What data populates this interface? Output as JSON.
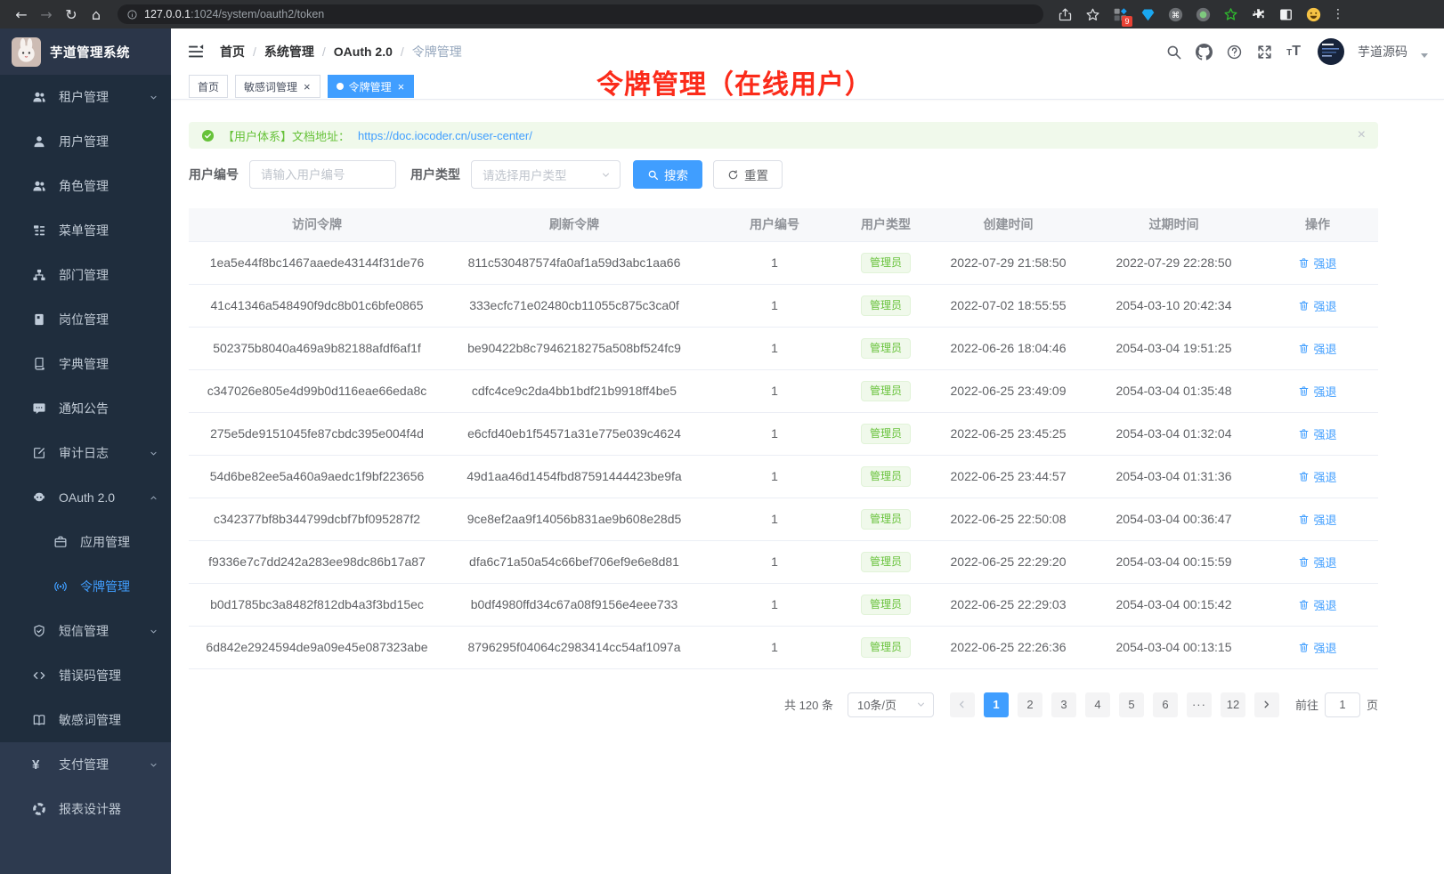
{
  "browser": {
    "url": "127.0.0.1:1024/system/oauth2/token",
    "extension_badge": "9"
  },
  "sidebar": {
    "logo_title": "芋道管理系统",
    "items": [
      {
        "id": "tenant",
        "label": "租户管理",
        "icon": "users-icon",
        "arrow": "down"
      },
      {
        "id": "user",
        "label": "用户管理",
        "icon": "user-icon"
      },
      {
        "id": "role",
        "label": "角色管理",
        "icon": "role-icon"
      },
      {
        "id": "menu",
        "label": "菜单管理",
        "icon": "menu-tree-icon"
      },
      {
        "id": "dept",
        "label": "部门管理",
        "icon": "org-icon"
      },
      {
        "id": "post",
        "label": "岗位管理",
        "icon": "badge-icon"
      },
      {
        "id": "dict",
        "label": "字典管理",
        "icon": "dict-icon"
      },
      {
        "id": "notice",
        "label": "通知公告",
        "icon": "message-icon"
      },
      {
        "id": "audit",
        "label": "审计日志",
        "icon": "audit-icon",
        "arrow": "down"
      },
      {
        "id": "oauth2",
        "label": "OAuth 2.0",
        "icon": "robot-icon",
        "arrow": "up",
        "children": [
          {
            "id": "oauth2-app",
            "label": "应用管理",
            "icon": "briefcase-icon"
          },
          {
            "id": "oauth2-token",
            "label": "令牌管理",
            "icon": "broadcast-icon",
            "active": true
          }
        ]
      },
      {
        "id": "sms",
        "label": "短信管理",
        "icon": "shield-icon",
        "arrow": "down"
      },
      {
        "id": "errcode",
        "label": "错误码管理",
        "icon": "code-icon"
      },
      {
        "id": "sensitive",
        "label": "敏感词管理",
        "icon": "open-book-icon"
      }
    ],
    "root_items": [
      {
        "id": "pay",
        "label": "支付管理",
        "icon": "yen-icon",
        "arrow": "down"
      },
      {
        "id": "report",
        "label": "报表设计器",
        "icon": "ring-icon"
      }
    ]
  },
  "header": {
    "breadcrumb": [
      "首页",
      "系统管理",
      "OAuth 2.0",
      "令牌管理"
    ],
    "username": "芋道源码"
  },
  "tabs": [
    {
      "label": "首页"
    },
    {
      "label": "敏感词管理",
      "closable": true
    },
    {
      "label": "令牌管理",
      "closable": true,
      "active": true
    }
  ],
  "annotation": "令牌管理（在线用户）",
  "alert": {
    "text": "【用户体系】文档地址：",
    "link": "https://doc.iocoder.cn/user-center/"
  },
  "filters": {
    "user_id_label": "用户编号",
    "user_id_placeholder": "请输入用户编号",
    "user_type_label": "用户类型",
    "user_type_placeholder": "请选择用户类型",
    "search_label": "搜索",
    "reset_label": "重置"
  },
  "table": {
    "columns": [
      "访问令牌",
      "刷新令牌",
      "用户编号",
      "用户类型",
      "创建时间",
      "过期时间",
      "操作"
    ],
    "action_label": "强退",
    "rows": [
      {
        "access_token": "1ea5e44f8bc1467aaede43144f31de76",
        "refresh_token": "811c530487574fa0af1a59d3abc1aa66",
        "user_id": "1",
        "user_type": "管理员",
        "create_time": "2022-07-29 21:58:50",
        "expire_time": "2022-07-29 22:28:50"
      },
      {
        "access_token": "41c41346a548490f9dc8b01c6bfe0865",
        "refresh_token": "333ecfc71e02480cb11055c875c3ca0f",
        "user_id": "1",
        "user_type": "管理员",
        "create_time": "2022-07-02 18:55:55",
        "expire_time": "2054-03-10 20:42:34"
      },
      {
        "access_token": "502375b8040a469a9b82188afdf6af1f",
        "refresh_token": "be90422b8c7946218275a508bf524fc9",
        "user_id": "1",
        "user_type": "管理员",
        "create_time": "2022-06-26 18:04:46",
        "expire_time": "2054-03-04 19:51:25"
      },
      {
        "access_token": "c347026e805e4d99b0d116eae66eda8c",
        "refresh_token": "cdfc4ce9c2da4bb1bdf21b9918ff4be5",
        "user_id": "1",
        "user_type": "管理员",
        "create_time": "2022-06-25 23:49:09",
        "expire_time": "2054-03-04 01:35:48"
      },
      {
        "access_token": "275e5de9151045fe87cbdc395e004f4d",
        "refresh_token": "e6cfd40eb1f54571a31e775e039c4624",
        "user_id": "1",
        "user_type": "管理员",
        "create_time": "2022-06-25 23:45:25",
        "expire_time": "2054-03-04 01:32:04"
      },
      {
        "access_token": "54d6be82ee5a460a9aedc1f9bf223656",
        "refresh_token": "49d1aa46d1454fbd87591444423be9fa",
        "user_id": "1",
        "user_type": "管理员",
        "create_time": "2022-06-25 23:44:57",
        "expire_time": "2054-03-04 01:31:36"
      },
      {
        "access_token": "c342377bf8b344799dcbf7bf095287f2",
        "refresh_token": "9ce8ef2aa9f14056b831ae9b608e28d5",
        "user_id": "1",
        "user_type": "管理员",
        "create_time": "2022-06-25 22:50:08",
        "expire_time": "2054-03-04 00:36:47"
      },
      {
        "access_token": "f9336e7c7dd242a283ee98dc86b17a87",
        "refresh_token": "dfa6c71a50a54c66bef706ef9e6e8d81",
        "user_id": "1",
        "user_type": "管理员",
        "create_time": "2022-06-25 22:29:20",
        "expire_time": "2054-03-04 00:15:59"
      },
      {
        "access_token": "b0d1785bc3a8482f812db4a3f3bd15ec",
        "refresh_token": "b0df4980ffd34c67a08f9156e4eee733",
        "user_id": "1",
        "user_type": "管理员",
        "create_time": "2022-06-25 22:29:03",
        "expire_time": "2054-03-04 00:15:42"
      },
      {
        "access_token": "6d842e2924594de9a09e45e087323abe",
        "refresh_token": "8796295f04064c2983414cc54af1097a",
        "user_id": "1",
        "user_type": "管理员",
        "create_time": "2022-06-25 22:26:36",
        "expire_time": "2054-03-04 00:13:15"
      }
    ]
  },
  "pagination": {
    "total_label": "共 120 条",
    "page_size_label": "10条/页",
    "pages": [
      "1",
      "2",
      "3",
      "4",
      "5",
      "6",
      "···",
      "12"
    ],
    "active_page": "1",
    "goto_label": "前往",
    "goto_value": "1",
    "goto_unit": "页"
  }
}
